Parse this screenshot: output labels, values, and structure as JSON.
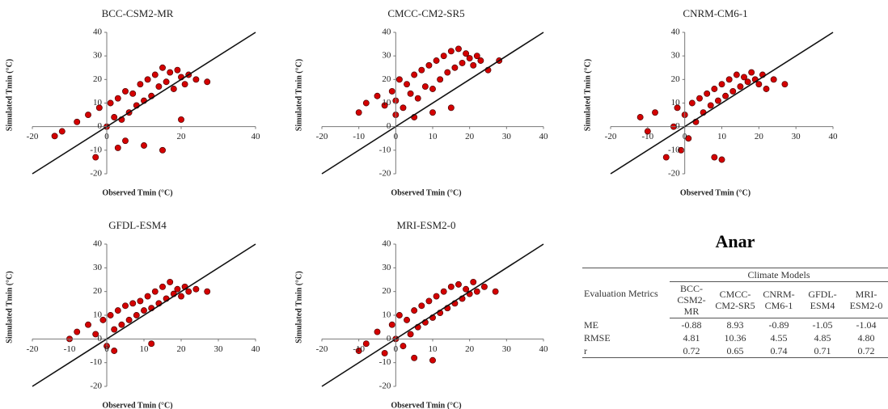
{
  "chart_data": [
    {
      "type": "scatter",
      "title": "BCC-CSM2-MR",
      "x_label": "Observed Tmin  (°C)",
      "y_label": "Simulated Tmin (°C)",
      "color": "#d40000",
      "x": [
        -12,
        -8,
        -5,
        -3,
        -2,
        0,
        1,
        2,
        3,
        4,
        5,
        6,
        7,
        8,
        9,
        10,
        11,
        12,
        13,
        14,
        15,
        16,
        17,
        18,
        19,
        20,
        21,
        22,
        24,
        27,
        -14,
        5,
        10,
        15,
        20,
        3
      ],
      "values": [
        -2,
        2,
        5,
        -13,
        8,
        0,
        10,
        4,
        12,
        3,
        15,
        6,
        14,
        9,
        18,
        11,
        20,
        13,
        22,
        17,
        25,
        19,
        23,
        16,
        24,
        21,
        18,
        22,
        20,
        19,
        -4,
        -6,
        -8,
        -10,
        3,
        -9
      ],
      "xlim": [
        -20,
        40
      ],
      "ylim": [
        -20,
        40
      ],
      "xticks": [
        -20,
        0,
        20,
        40
      ],
      "yticks": [
        -20,
        -10,
        0,
        10,
        20,
        30,
        40
      ]
    },
    {
      "type": "scatter",
      "title": "CMCC-CM2-SR5",
      "x_label": "Observed Tmin  (°C)",
      "y_label": "Simulated Tmin (°C)",
      "color": "#d40000",
      "x": [
        -10,
        -8,
        -5,
        -3,
        -1,
        0,
        1,
        2,
        3,
        4,
        5,
        6,
        7,
        8,
        9,
        10,
        11,
        12,
        13,
        14,
        15,
        16,
        17,
        18,
        19,
        20,
        21,
        22,
        23,
        25,
        28,
        0,
        5,
        10,
        15
      ],
      "values": [
        6,
        10,
        13,
        9,
        15,
        11,
        20,
        8,
        18,
        14,
        22,
        12,
        24,
        17,
        26,
        16,
        28,
        20,
        30,
        23,
        32,
        25,
        33,
        27,
        31,
        29,
        26,
        30,
        28,
        24,
        28,
        5,
        4,
        6,
        8
      ],
      "xlim": [
        -20,
        40
      ],
      "ylim": [
        -20,
        40
      ],
      "xticks": [
        -20,
        -10,
        0,
        10,
        20,
        30,
        40
      ],
      "yticks": [
        -20,
        -10,
        0,
        10,
        20,
        30,
        40
      ]
    },
    {
      "type": "scatter",
      "title": "CNRM-CM6-1",
      "x_label": "Observed Tmin  (°C)",
      "y_label": "Simulated Tmin (°C)",
      "color": "#d40000",
      "x": [
        -12,
        -10,
        -8,
        -5,
        -3,
        -2,
        0,
        1,
        2,
        3,
        4,
        5,
        6,
        7,
        8,
        9,
        10,
        11,
        12,
        13,
        14,
        15,
        16,
        17,
        18,
        19,
        20,
        21,
        22,
        24,
        27,
        -1,
        8,
        10
      ],
      "values": [
        4,
        -2,
        6,
        -13,
        0,
        8,
        5,
        -5,
        10,
        2,
        12,
        6,
        14,
        9,
        16,
        11,
        18,
        13,
        20,
        15,
        22,
        17,
        21,
        19,
        23,
        20,
        18,
        22,
        16,
        20,
        18,
        -10,
        -13,
        -14
      ],
      "xlim": [
        -20,
        40
      ],
      "ylim": [
        -20,
        40
      ],
      "xticks": [
        -20,
        -10,
        0,
        10,
        20,
        30,
        40
      ],
      "yticks": [
        -20,
        -10,
        0,
        10,
        20,
        30,
        40
      ]
    },
    {
      "type": "scatter",
      "title": "GFDL-ESM4",
      "x_label": "Observed Tmin  (°C)",
      "y_label": "Simulated Tmin (°C)",
      "color": "#d40000",
      "x": [
        -10,
        -8,
        -5,
        -3,
        -1,
        0,
        1,
        2,
        3,
        4,
        5,
        6,
        7,
        8,
        9,
        10,
        11,
        12,
        13,
        14,
        15,
        16,
        17,
        18,
        19,
        20,
        21,
        22,
        24,
        27,
        2,
        12
      ],
      "values": [
        0,
        3,
        6,
        2,
        8,
        -3,
        10,
        4,
        12,
        6,
        14,
        8,
        15,
        10,
        16,
        12,
        18,
        13,
        20,
        15,
        22,
        17,
        24,
        19,
        21,
        18,
        22,
        20,
        21,
        20,
        -5,
        -2
      ],
      "xlim": [
        -20,
        40
      ],
      "ylim": [
        -20,
        40
      ],
      "xticks": [
        -20,
        -10,
        0,
        10,
        20,
        30,
        40
      ],
      "yticks": [
        -20,
        -10,
        0,
        10,
        20,
        30,
        40
      ]
    },
    {
      "type": "scatter",
      "title": "MRI-ESM2-0",
      "x_label": "Observed Tmin  (°C)",
      "y_label": "Simulated Tmin (°C)",
      "color": "#d40000",
      "x": [
        -10,
        -8,
        -5,
        -3,
        -1,
        0,
        1,
        2,
        3,
        4,
        5,
        6,
        7,
        8,
        9,
        10,
        11,
        12,
        13,
        14,
        15,
        16,
        17,
        18,
        19,
        20,
        21,
        22,
        24,
        27,
        5,
        10
      ],
      "values": [
        -5,
        -2,
        3,
        -6,
        6,
        0,
        10,
        -3,
        8,
        2,
        12,
        5,
        14,
        7,
        16,
        9,
        18,
        11,
        20,
        13,
        22,
        15,
        23,
        17,
        21,
        19,
        24,
        20,
        22,
        20,
        -8,
        -9
      ],
      "xlim": [
        -20,
        40
      ],
      "ylim": [
        -20,
        40
      ],
      "xticks": [
        -20,
        -10,
        0,
        10,
        20,
        30,
        40
      ],
      "yticks": [
        -20,
        -10,
        0,
        10,
        20,
        30,
        40
      ]
    }
  ],
  "table": {
    "title": "Anar",
    "metrics_header": "Evaluation Metrics",
    "group_header": "Climate Models",
    "models": [
      "BCC-CSM2-MR",
      "CMCC-CM2-SR5",
      "CNRM-CM6-1",
      "GFDL-ESM4",
      "MRI-ESM2-0"
    ],
    "rows": [
      [
        "ME",
        "-0.88",
        "8.93",
        "-0.89",
        "-1.05",
        "-1.04"
      ],
      [
        "RMSE",
        "4.81",
        "10.36",
        "4.55",
        "4.85",
        "4.80"
      ],
      [
        "r",
        "0.72",
        "0.65",
        "0.74",
        "0.71",
        "0.72"
      ]
    ]
  }
}
